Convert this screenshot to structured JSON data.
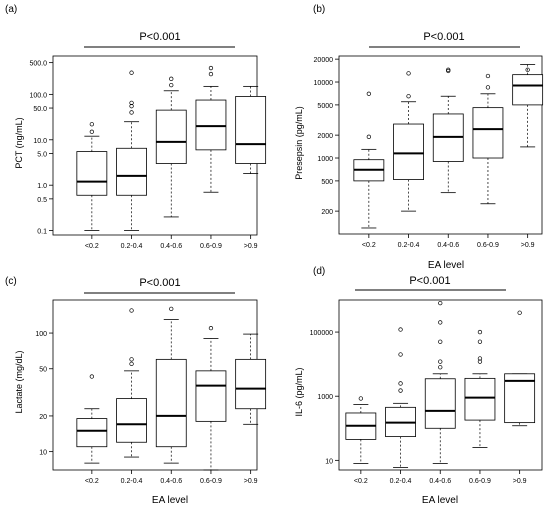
{
  "chart_data": [
    {
      "type": "box",
      "panel_label": "(a)",
      "annotation": "P<0.001",
      "ylabel": "PCT (ng/mL)",
      "xlabel": "",
      "scale": "log",
      "ylim": [
        0.08,
        700
      ],
      "yticks": [
        {
          "value": 0.1,
          "label": "0.1"
        },
        {
          "value": 0.5,
          "label": "0.5"
        },
        {
          "value": 1,
          "label": "1.0"
        },
        {
          "value": 5,
          "label": "5.0"
        },
        {
          "value": 10,
          "label": "10.0"
        },
        {
          "value": 50,
          "label": "50.0"
        },
        {
          "value": 100,
          "label": "100.0"
        },
        {
          "value": 500,
          "label": "500.0"
        }
      ],
      "categories": [
        "<0.2",
        "0.2-0.4",
        "0.4-0.6",
        "0.6-0.9",
        ">0.9"
      ],
      "boxes": [
        {
          "min": 0.1,
          "q1": 0.6,
          "median": 1.2,
          "q3": 5.5,
          "max": 12,
          "outliers": [
            15,
            22
          ]
        },
        {
          "min": 0.1,
          "q1": 0.6,
          "median": 1.6,
          "q3": 6.5,
          "max": 25,
          "outliers": [
            40,
            55,
            65,
            300
          ]
        },
        {
          "min": 0.2,
          "q1": 3.0,
          "median": 9.0,
          "q3": 45,
          "max": 120,
          "outliers": [
            160,
            220
          ]
        },
        {
          "min": 0.7,
          "q1": 6.0,
          "median": 20,
          "q3": 75,
          "max": 150,
          "outliers": [
            280,
            380
          ]
        },
        {
          "min": 1.8,
          "q1": 3.0,
          "median": 8.0,
          "q3": 90,
          "max": 150,
          "outliers": []
        }
      ]
    },
    {
      "type": "box",
      "panel_label": "(b)",
      "annotation": "P<0.001",
      "ylabel": "Presepsin (pg/mL)",
      "xlabel": "EA level",
      "scale": "log",
      "ylim": [
        100,
        22000
      ],
      "yticks": [
        {
          "value": 200,
          "label": "200"
        },
        {
          "value": 500,
          "label": "500"
        },
        {
          "value": 1000,
          "label": "1000"
        },
        {
          "value": 2000,
          "label": "2000"
        },
        {
          "value": 5000,
          "label": "5000"
        },
        {
          "value": 10000,
          "label": "10000"
        },
        {
          "value": 20000,
          "label": "20000"
        }
      ],
      "categories": [
        "<0.2",
        "0.2-0.4",
        "0.4-0.6",
        "0.6-0.9",
        ">0.9"
      ],
      "boxes": [
        {
          "min": 120,
          "q1": 500,
          "median": 700,
          "q3": 950,
          "max": 1300,
          "outliers": [
            1900,
            7000
          ]
        },
        {
          "min": 200,
          "q1": 520,
          "median": 1150,
          "q3": 2800,
          "max": 5500,
          "outliers": [
            6500,
            13000
          ]
        },
        {
          "min": 350,
          "q1": 900,
          "median": 1900,
          "q3": 3800,
          "max": 6500,
          "outliers": [
            14000,
            14500
          ]
        },
        {
          "min": 250,
          "q1": 1000,
          "median": 2400,
          "q3": 4600,
          "max": 7000,
          "outliers": [
            8500,
            12000
          ]
        },
        {
          "min": 1400,
          "q1": 5000,
          "median": 9000,
          "q3": 12500,
          "max": 17000,
          "outliers": [
            14500
          ]
        }
      ]
    },
    {
      "type": "box",
      "panel_label": "(c)",
      "annotation": "P<0.001",
      "ylabel": "Lactate (mg/dL)",
      "xlabel": "EA level",
      "scale": "log",
      "ylim": [
        7,
        190
      ],
      "yticks": [
        {
          "value": 10,
          "label": "10"
        },
        {
          "value": 20,
          "label": "20"
        },
        {
          "value": 50,
          "label": "50"
        },
        {
          "value": 100,
          "label": "100"
        }
      ],
      "categories": [
        "<0.2",
        "0.2-0.4",
        "0.4-0.6",
        "0.6-0.9",
        ">0.9"
      ],
      "boxes": [
        {
          "min": 8,
          "q1": 11,
          "median": 15,
          "q3": 19,
          "max": 23,
          "outliers": [
            43
          ]
        },
        {
          "min": 9,
          "q1": 12,
          "median": 17,
          "q3": 28,
          "max": 48,
          "outliers": [
            55,
            60,
            155
          ]
        },
        {
          "min": 8,
          "q1": 11,
          "median": 20,
          "q3": 60,
          "max": 130,
          "outliers": [
            160
          ]
        },
        {
          "min": 7,
          "q1": 18,
          "median": 36,
          "q3": 48,
          "max": 90,
          "outliers": [
            110
          ]
        },
        {
          "min": 17,
          "q1": 23,
          "median": 34,
          "q3": 60,
          "max": 98,
          "outliers": []
        }
      ]
    },
    {
      "type": "box",
      "panel_label": "(d)",
      "annotation": "P<0.001",
      "ylabel": "IL-6 (pg/mL)",
      "xlabel": "EA level",
      "scale": "log",
      "ylim": [
        5,
        1000000
      ],
      "yticks": [
        {
          "value": 10,
          "label": "10"
        },
        {
          "value": 1000,
          "label": "1000"
        },
        {
          "value": 100000,
          "label": "100000"
        }
      ],
      "categories": [
        "<0.2",
        "0.2-0.4",
        "0.4-0.6",
        "0.6-0.9",
        ">0.9"
      ],
      "boxes": [
        {
          "min": 8,
          "q1": 45,
          "median": 120,
          "q3": 300,
          "max": 550,
          "outliers": [
            850
          ]
        },
        {
          "min": 6,
          "q1": 55,
          "median": 150,
          "q3": 450,
          "max": 600,
          "outliers": [
            1500,
            2500,
            20000,
            120000
          ]
        },
        {
          "min": 8,
          "q1": 100,
          "median": 350,
          "q3": 3500,
          "max": 5000,
          "outliers": [
            8000,
            12000,
            50000,
            200000,
            800000
          ]
        },
        {
          "min": 25,
          "q1": 180,
          "median": 900,
          "q3": 3600,
          "max": 5000,
          "outliers": [
            12000,
            15000,
            50000,
            100000
          ]
        },
        {
          "min": 120,
          "q1": 150,
          "median": 3000,
          "q3": 5000,
          "max": 5000,
          "outliers": [
            400000
          ]
        }
      ]
    }
  ]
}
